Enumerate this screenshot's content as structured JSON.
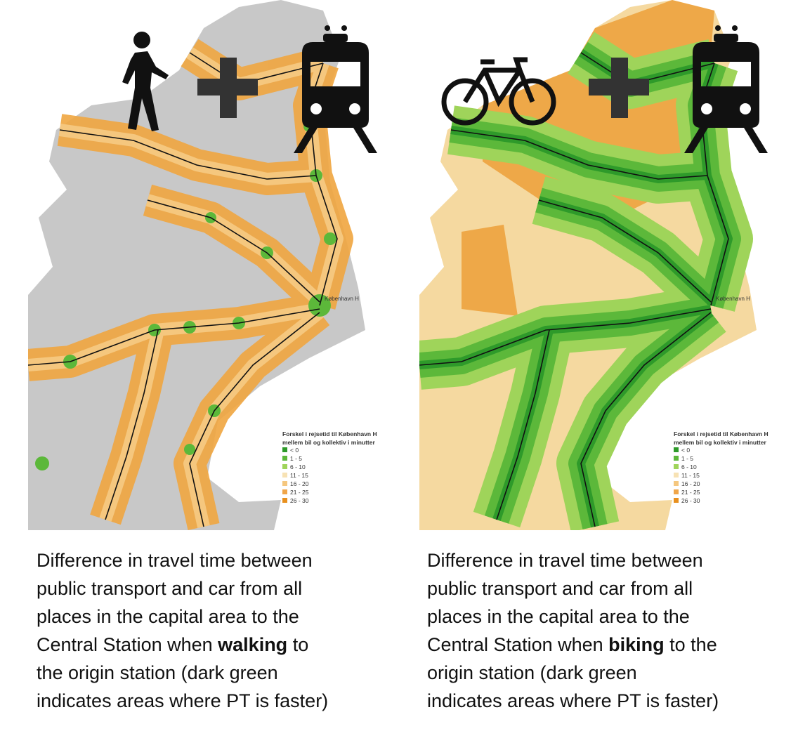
{
  "panels": [
    {
      "station_label": "København H",
      "legend": {
        "title_lines": [
          "Forskel i rejsetid til København H",
          "mellem bil og kollektiv i minutter"
        ],
        "items": [
          "< 0",
          "1 - 5",
          "6 - 10",
          "11 - 15",
          "16 - 20",
          "21 - 25",
          "26 - 30"
        ],
        "colors": [
          "#2e9a2a",
          "#5cb83a",
          "#9fd45a",
          "#f7e2b4",
          "#f5c77e",
          "#f0a64a",
          "#e8901e"
        ]
      },
      "caption_lines": [
        "Difference in travel time between",
        "public transport and car from all",
        "places in the capital area to the",
        {
          "before": "Central Station when ",
          "bold": "walking",
          "after": " to"
        },
        "the origin station (dark green",
        "indicates areas where PT is faster)"
      ]
    },
    {
      "station_label": "København H",
      "legend": {
        "title_lines": [
          "Forskel i rejsetid til København H",
          "mellem bil og kollektiv i minutter"
        ],
        "items": [
          "< 0",
          "1 - 5",
          "6 - 10",
          "11 - 15",
          "16 - 20",
          "21 - 25",
          "26 - 30"
        ],
        "colors": [
          "#2e9a2a",
          "#5cb83a",
          "#9fd45a",
          "#f7e2b4",
          "#f5c77e",
          "#f0a64a",
          "#e8901e"
        ]
      },
      "caption_lines": [
        "Difference in travel time between",
        "public transport and car from all",
        "places in the capital area to the",
        {
          "before": "Central Station when ",
          "bold": "biking",
          "after": " to the"
        },
        "origin station (dark green",
        "indicates areas where PT is faster)"
      ]
    }
  ]
}
